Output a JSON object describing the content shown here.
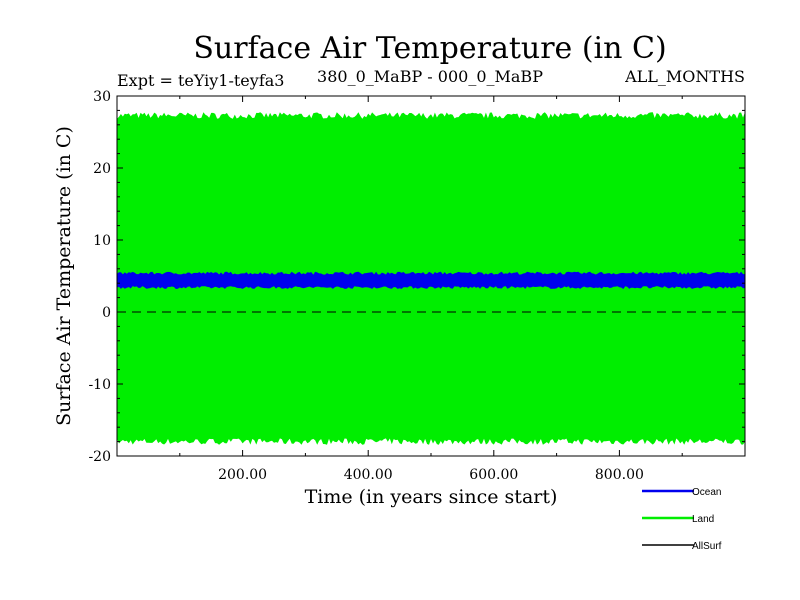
{
  "chart_data": {
    "type": "area",
    "title": "Surface Air Temperature (in C)",
    "subtitle_left": "Expt = teYiy1-teyfa3",
    "subtitle_center": "380_0_MaBP - 000_0_MaBP",
    "subtitle_right": "ALL_MONTHS",
    "xlabel": "Time (in years since start)",
    "ylabel": "Surface Air Temperature (in C)",
    "xlim": [
      0,
      1000
    ],
    "ylim": [
      -20,
      30
    ],
    "x_ticks": [
      200,
      400,
      600,
      800
    ],
    "x_tick_labels": [
      "200.00",
      "400.00",
      "600.00",
      "800.00"
    ],
    "y_ticks": [
      -20,
      -10,
      0,
      10,
      20,
      30
    ],
    "y_tick_labels": [
      "-20",
      "-10",
      "0",
      "10",
      "20",
      "30"
    ],
    "zero_line": 0,
    "series": [
      {
        "name": "Land",
        "color": "#00ee00",
        "band": [
          -18,
          27.3
        ],
        "mean": 4.5
      },
      {
        "name": "Ocean",
        "color": "#0000ee",
        "band": [
          3.4,
          5.4
        ],
        "mean": 4.3
      },
      {
        "name": "AllSurf",
        "color": "#000000",
        "band": null,
        "mean": null
      }
    ],
    "legend": [
      {
        "name": "Ocean",
        "color": "#0000ee"
      },
      {
        "name": "Land",
        "color": "#00ee00"
      },
      {
        "name": "AllSurf",
        "color": "#000000"
      }
    ],
    "legend_position": "bottom-right"
  }
}
